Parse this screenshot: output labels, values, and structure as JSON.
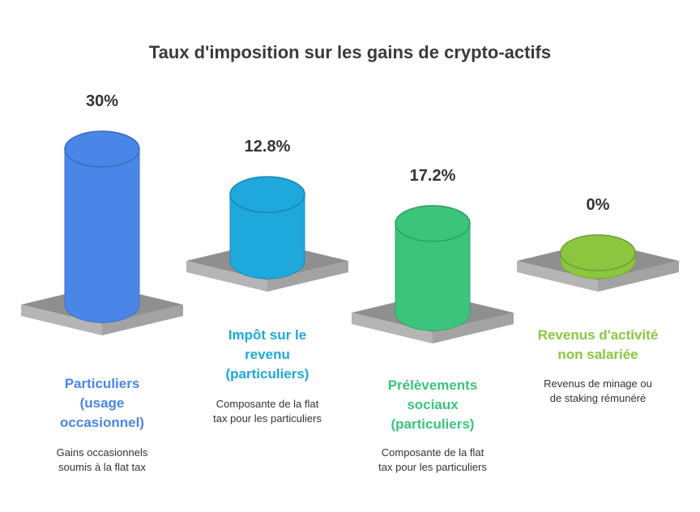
{
  "chart_data": {
    "type": "bar",
    "title": "Taux d'imposition sur les gains de crypto-actifs",
    "categories": [
      "Particuliers\n(usage\noccasionnel)",
      "Impôt sur le\nrevenu\n(particuliers)",
      "Prélèvements\nsociaux\n(particuliers)",
      "Revenus d'activité\nnon salariée"
    ],
    "values": [
      30,
      12.8,
      17.2,
      0
    ],
    "value_labels": [
      "30%",
      "12.8%",
      "17.2%",
      "0%"
    ],
    "descriptions": [
      "Gains occasionnels\nsoumis à la flat tax",
      "Composante de la flat\ntax pour les particuliers",
      "Composante de la flat\ntax pour les particuliers",
      "Revenus de minage ou\nde staking rémunéré"
    ],
    "colors": [
      "#4a86e8",
      "#1fa8dc",
      "#3cc47c",
      "#8cc63f"
    ],
    "ylim": [
      0,
      30
    ],
    "grid": false,
    "legend": "none"
  }
}
